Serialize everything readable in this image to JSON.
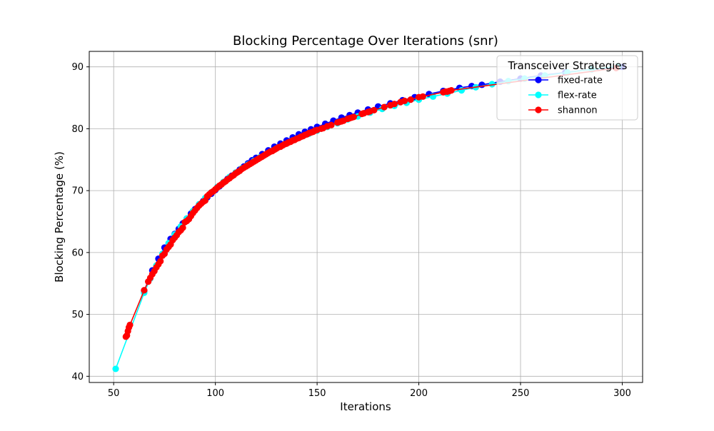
{
  "chart_data": {
    "type": "line",
    "title": "Blocking Percentage Over Iterations (snr)",
    "xlabel": "Iterations",
    "ylabel": "Blocking Percentage (%)",
    "xlim": [
      38,
      310
    ],
    "ylim": [
      39,
      92.5
    ],
    "xticks": [
      50,
      100,
      150,
      200,
      250,
      300
    ],
    "yticks": [
      40,
      50,
      60,
      70,
      80,
      90
    ],
    "grid": true,
    "legend": {
      "title": "Transceiver Strategies",
      "placement": "top-right"
    },
    "series": [
      {
        "name": "fixed-rate",
        "color": "#0000ff",
        "x": [
          65,
          69,
          72,
          75,
          78,
          80,
          82,
          84,
          86,
          88,
          90,
          92,
          94,
          96,
          98,
          100,
          102,
          104,
          106,
          108,
          110,
          112,
          114,
          116,
          118,
          120,
          123,
          126,
          129,
          132,
          135,
          138,
          141,
          144,
          147,
          150,
          154,
          158,
          162,
          166,
          170,
          175,
          180,
          186,
          192,
          198,
          205,
          212,
          220,
          226,
          231,
          240,
          250,
          260,
          272,
          285,
          300
        ],
        "y": [
          53.8,
          57.1,
          59.0,
          60.8,
          62.2,
          63.0,
          63.8,
          64.7,
          65.5,
          66.3,
          67.0,
          67.7,
          68.3,
          68.9,
          69.5,
          70.1,
          70.7,
          71.3,
          71.9,
          72.4,
          72.9,
          73.4,
          73.9,
          74.4,
          74.9,
          75.3,
          75.9,
          76.5,
          77.1,
          77.6,
          78.1,
          78.6,
          79.1,
          79.5,
          79.9,
          80.3,
          80.8,
          81.3,
          81.8,
          82.2,
          82.6,
          83.1,
          83.6,
          84.1,
          84.6,
          85.1,
          85.6,
          86.1,
          86.6,
          86.9,
          87.1,
          87.6,
          88.1,
          88.6,
          89.1,
          89.6,
          90.0
        ]
      },
      {
        "name": "flex-rate",
        "color": "#00ffff",
        "x": [
          51,
          65,
          68,
          71,
          74,
          77,
          80,
          83,
          86,
          89,
          92,
          95,
          98,
          101,
          104,
          107,
          110,
          113,
          116,
          119,
          122,
          126,
          130,
          134,
          138,
          142,
          146,
          150,
          155,
          160,
          165,
          170,
          176,
          182,
          188,
          194,
          200,
          207,
          214,
          221,
          228,
          236,
          244,
          252,
          262,
          273,
          285,
          298
        ],
        "y": [
          41.2,
          53.5,
          55.8,
          57.9,
          59.8,
          61.5,
          62.9,
          64.2,
          65.5,
          66.7,
          67.8,
          68.8,
          69.7,
          70.6,
          71.4,
          72.2,
          72.9,
          73.6,
          74.2,
          74.8,
          75.4,
          76.1,
          76.8,
          77.5,
          78.1,
          78.7,
          79.2,
          79.7,
          80.3,
          80.9,
          81.5,
          82.0,
          82.6,
          83.2,
          83.7,
          84.2,
          84.7,
          85.2,
          85.7,
          86.2,
          86.7,
          87.2,
          87.7,
          88.1,
          88.6,
          89.1,
          89.6,
          90.1
        ]
      },
      {
        "name": "shannon",
        "color": "#ff0000",
        "x": [
          56,
          56.5,
          57,
          57.5,
          58,
          65,
          67,
          68,
          69,
          70,
          71,
          72,
          73,
          74,
          75,
          76,
          77,
          78,
          79,
          80,
          81,
          82,
          83,
          84,
          85,
          86,
          87,
          88,
          89,
          90,
          91,
          92,
          93,
          94,
          95,
          96,
          97,
          98,
          99,
          100,
          101,
          102,
          103,
          104,
          105,
          106,
          107,
          108,
          109,
          110,
          111,
          112,
          113,
          114,
          115,
          116,
          117,
          118,
          119,
          120,
          121,
          122,
          123,
          124,
          125,
          126,
          127,
          128,
          129,
          130,
          131,
          132,
          133,
          134,
          135,
          136,
          137,
          138,
          139,
          140,
          141,
          142,
          143,
          144,
          145,
          146,
          147,
          148,
          149,
          150,
          152,
          153,
          155,
          157,
          160,
          161,
          162,
          163,
          165,
          166,
          167,
          168,
          172,
          173,
          175,
          176,
          178,
          183,
          186,
          188,
          191,
          193,
          196,
          200,
          202,
          212,
          213,
          214,
          215,
          216,
          297
        ],
        "y": [
          46.4,
          46.6,
          47.3,
          47.9,
          48.3,
          53.9,
          55.3,
          55.9,
          56.5,
          57.0,
          57.6,
          58.1,
          58.6,
          59.5,
          59.8,
          60.5,
          60.9,
          61.3,
          62.0,
          62.4,
          62.8,
          63.3,
          63.6,
          64.0,
          64.9,
          65.1,
          65.4,
          65.9,
          66.4,
          66.8,
          67.2,
          67.6,
          67.9,
          68.2,
          68.4,
          69.1,
          69.4,
          69.7,
          69.9,
          70.2,
          70.5,
          70.8,
          71.0,
          71.3,
          71.5,
          71.8,
          72.0,
          72.3,
          72.5,
          72.8,
          73.0,
          73.2,
          73.5,
          73.7,
          73.9,
          74.1,
          74.3,
          74.5,
          74.7,
          74.9,
          75.1,
          75.3,
          75.5,
          75.7,
          75.9,
          76.1,
          76.3,
          76.4,
          76.6,
          76.8,
          77.0,
          77.1,
          77.3,
          77.5,
          77.6,
          77.8,
          77.9,
          78.1,
          78.2,
          78.4,
          78.5,
          78.7,
          78.8,
          79.0,
          79.1,
          79.3,
          79.4,
          79.5,
          79.7,
          79.8,
          80.0,
          80.1,
          80.4,
          80.6,
          81.0,
          81.1,
          81.2,
          81.3,
          81.6,
          81.7,
          81.8,
          81.9,
          82.4,
          82.5,
          82.7,
          82.8,
          83.0,
          83.5,
          83.8,
          84.0,
          84.3,
          84.5,
          84.7,
          85.1,
          85.2,
          85.9,
          86.0,
          86.0,
          86.1,
          86.2,
          89.8
        ]
      }
    ]
  }
}
